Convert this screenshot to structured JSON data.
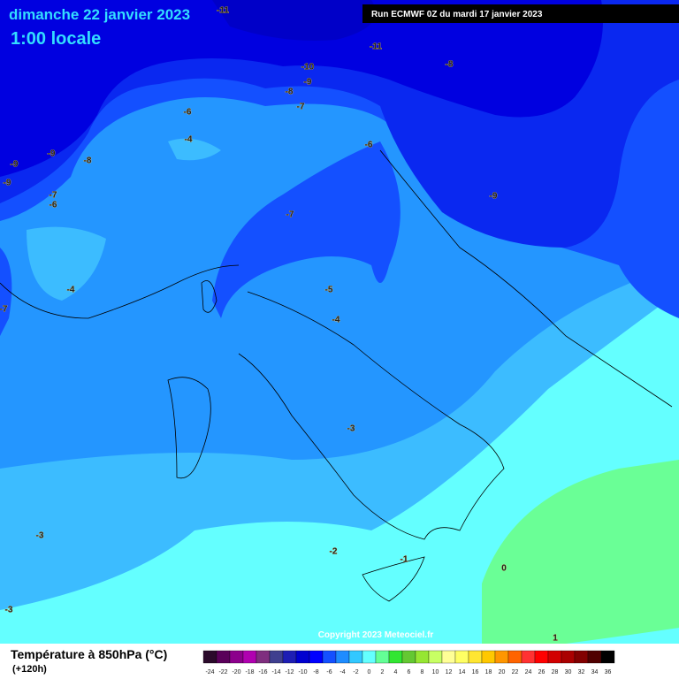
{
  "header": {
    "date": "dimanche 22 janvier 2023",
    "time": "1:00 locale",
    "run": "Run ECMWF 0Z du mardi 17 janvier 2023"
  },
  "map": {
    "copyright": "Copyright 2023 Meteociel.fr",
    "contour_labels": [
      "-11",
      "-11",
      "-8",
      "-10",
      "-9",
      "-8",
      "-7",
      "-6",
      "-4",
      "-6",
      "-9",
      "-9",
      "-8",
      "-9",
      "-7",
      "-6",
      "-9",
      "-7",
      "-4",
      "-7",
      "-5",
      "-4",
      "-3",
      "-3",
      "-2",
      "-1",
      "0",
      "-3",
      "1"
    ]
  },
  "legend": {
    "title": "Température à 850hPa (°C)",
    "subtitle": "(+120h)",
    "labels": [
      -24,
      -22,
      -20,
      -18,
      -16,
      -14,
      -12,
      -10,
      -8,
      -6,
      -4,
      -2,
      0,
      2,
      4,
      6,
      8,
      10,
      12,
      14,
      16,
      18,
      20,
      22,
      24,
      26,
      28,
      30,
      32,
      34,
      36
    ],
    "colors": [
      "#2b0a2b",
      "#5a005a",
      "#8c008c",
      "#b000b0",
      "#7f2f7f",
      "#3f3f8f",
      "#1e1eb4",
      "#0000d0",
      "#0000ff",
      "#1450ff",
      "#1e8cff",
      "#32c8ff",
      "#64ffff",
      "#64ff96",
      "#32e632",
      "#64c832",
      "#96e632",
      "#c8ff64",
      "#ffff96",
      "#ffff64",
      "#ffe632",
      "#ffc800",
      "#ff9600",
      "#ff6400",
      "#ff3232",
      "#ff0000",
      "#d20000",
      "#aa0000",
      "#820000",
      "#500000",
      "#000000"
    ]
  }
}
